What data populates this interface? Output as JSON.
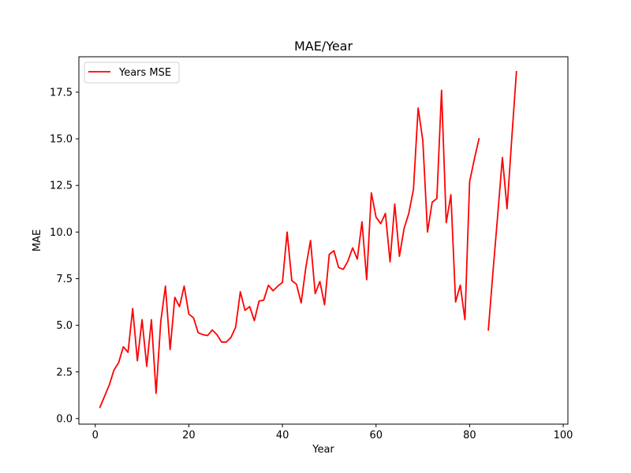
{
  "chart_data": {
    "type": "line",
    "title": "MAE/Year",
    "xlabel": "Year",
    "ylabel": "MAE",
    "xlim": [
      -3.5,
      101
    ],
    "ylim": [
      -0.3,
      19.4
    ],
    "xticks": [
      0,
      20,
      40,
      60,
      80,
      100
    ],
    "yticks": [
      0.0,
      2.5,
      5.0,
      7.5,
      10.0,
      12.5,
      15.0,
      17.5
    ],
    "xtick_labels": [
      "0",
      "20",
      "40",
      "60",
      "80",
      "100"
    ],
    "ytick_labels": [
      "0.0",
      "2.5",
      "5.0",
      "7.5",
      "10.0",
      "12.5",
      "15.0",
      "17.5"
    ],
    "grid": false,
    "legend_position": "upper-left",
    "series": [
      {
        "name": "Years MSE",
        "color": "#ff0000",
        "x": [
          1,
          2,
          3,
          4,
          5,
          6,
          7,
          8,
          9,
          10,
          11,
          12,
          13,
          14,
          15,
          16,
          17,
          18,
          19,
          20,
          21,
          22,
          23,
          24,
          25,
          26,
          27,
          28,
          29,
          30,
          31,
          32,
          33,
          34,
          35,
          36,
          37,
          38,
          39,
          40,
          41,
          42,
          43,
          44,
          45,
          46,
          47,
          48,
          49,
          50,
          51,
          52,
          53,
          54,
          55,
          56,
          57,
          58,
          59,
          60,
          61,
          62,
          63,
          64,
          65,
          66,
          67,
          68,
          69,
          70,
          71,
          72,
          73,
          74,
          75,
          76,
          77,
          78,
          79,
          80,
          81,
          82,
          83,
          84,
          85,
          86,
          87,
          88,
          89,
          90
        ],
        "y": [
          0.6,
          1.2,
          1.8,
          2.6,
          3.0,
          3.85,
          3.55,
          5.9,
          3.1,
          5.3,
          2.8,
          5.3,
          1.35,
          5.2,
          7.1,
          3.7,
          6.5,
          6.0,
          7.1,
          5.6,
          5.4,
          4.6,
          4.5,
          4.45,
          4.75,
          4.5,
          4.1,
          4.1,
          4.35,
          4.9,
          6.8,
          5.8,
          6.0,
          5.25,
          6.3,
          6.35,
          7.15,
          6.85,
          7.1,
          7.3,
          10.0,
          7.4,
          7.2,
          6.2,
          8.1,
          9.55,
          6.7,
          7.35,
          6.1,
          8.8,
          9.0,
          8.1,
          8.0,
          8.45,
          9.15,
          8.55,
          10.55,
          7.45,
          12.1,
          10.8,
          10.45,
          11.0,
          8.4,
          11.5,
          8.7,
          10.2,
          11.0,
          12.3,
          16.65,
          14.9,
          10.0,
          11.6,
          11.8,
          17.6,
          10.5,
          12.0,
          6.25,
          7.15,
          5.3,
          12.7,
          13.9,
          15.0,
          null,
          4.75,
          7.9,
          10.9,
          14.0,
          11.25,
          15.0,
          18.6
        ]
      }
    ]
  }
}
